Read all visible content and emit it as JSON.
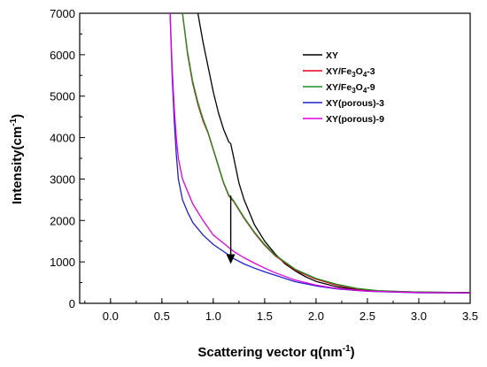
{
  "chart_data": {
    "type": "line",
    "xlabel_main": "Scattering vector q",
    "xlabel_unit": "(nm",
    "xlabel_sup": "-1",
    "xlabel_close": ")",
    "ylabel_main": "Intensity",
    "ylabel_unit": "(cm",
    "ylabel_sup": "-1",
    "ylabel_close": ")",
    "xlim": [
      -0.3,
      3.5
    ],
    "ylim": [
      0,
      7000
    ],
    "x_ticks": [
      0.0,
      0.5,
      1.0,
      1.5,
      2.0,
      2.5,
      3.0,
      3.5
    ],
    "x_tick_labels": [
      "0.0",
      "0.5",
      "1.0",
      "1.5",
      "2.0",
      "2.5",
      "3.0",
      "3.5"
    ],
    "y_ticks": [
      0,
      1000,
      2000,
      3000,
      4000,
      5000,
      6000,
      7000
    ],
    "y_tick_labels": [
      "0",
      "1000",
      "2000",
      "3000",
      "4000",
      "5000",
      "6000",
      "7000"
    ],
    "grid": false,
    "legend_position": "top-right",
    "annotation": "downward arrow at q ≈ 1.17 from about 2600 to 900",
    "series": [
      {
        "legend": [
          "XY"
        ],
        "color": "#000000",
        "x": [
          0.85,
          0.9,
          0.95,
          1.0,
          1.05,
          1.1,
          1.15,
          1.17,
          1.2,
          1.25,
          1.3,
          1.35,
          1.4,
          1.5,
          1.6,
          1.7,
          1.8,
          1.9,
          2.0,
          2.2,
          2.4,
          2.6,
          3.0,
          3.5
        ],
        "y": [
          7000,
          6300,
          5700,
          5100,
          4600,
          4200,
          3900,
          3850,
          3500,
          2900,
          2500,
          2200,
          1900,
          1500,
          1200,
          950,
          780,
          640,
          530,
          400,
          330,
          290,
          270,
          260
        ]
      },
      {
        "legend": [
          "XY/Fe",
          "3",
          "O",
          "4",
          "-3"
        ],
        "color": "#e8001c",
        "x": [
          0.7,
          0.75,
          0.8,
          0.85,
          0.9,
          0.95,
          1.0,
          1.05,
          1.1,
          1.15,
          1.2,
          1.3,
          1.4,
          1.5,
          1.6,
          1.8,
          2.0,
          2.2,
          2.4,
          2.6,
          3.0,
          3.5
        ],
        "y": [
          7000,
          6000,
          5300,
          4800,
          4400,
          4100,
          3700,
          3300,
          2900,
          2600,
          2450,
          2050,
          1700,
          1400,
          1150,
          800,
          580,
          440,
          350,
          300,
          265,
          255
        ]
      },
      {
        "legend": [
          "XY/Fe",
          "3",
          "O",
          "4",
          "-9"
        ],
        "color": "#1f8f1f",
        "x": [
          0.7,
          0.75,
          0.8,
          0.85,
          0.9,
          0.95,
          1.0,
          1.05,
          1.1,
          1.15,
          1.2,
          1.3,
          1.4,
          1.5,
          1.6,
          1.8,
          2.0,
          2.2,
          2.4,
          2.6,
          3.0,
          3.5
        ],
        "y": [
          7000,
          6050,
          5350,
          4850,
          4450,
          4120,
          3720,
          3320,
          2920,
          2620,
          2470,
          2070,
          1720,
          1420,
          1170,
          820,
          600,
          460,
          360,
          305,
          270,
          258
        ]
      },
      {
        "legend": [
          "XY(porous)-3"
        ],
        "color": "#1f1fcf",
        "x": [
          0.58,
          0.6,
          0.62,
          0.64,
          0.66,
          0.7,
          0.75,
          0.8,
          0.9,
          1.0,
          1.1,
          1.2,
          1.3,
          1.4,
          1.5,
          1.6,
          1.8,
          2.0,
          2.2,
          2.5,
          3.0,
          3.5
        ],
        "y": [
          7000,
          5500,
          4400,
          3600,
          3000,
          2500,
          2200,
          1950,
          1650,
          1420,
          1250,
          1080,
          950,
          850,
          760,
          680,
          520,
          420,
          350,
          290,
          255,
          250
        ]
      },
      {
        "legend": [
          "XY(porous)-9"
        ],
        "color": "#e000e0",
        "x": [
          0.58,
          0.6,
          0.62,
          0.64,
          0.66,
          0.7,
          0.75,
          0.8,
          0.9,
          1.0,
          1.1,
          1.2,
          1.3,
          1.4,
          1.5,
          1.6,
          1.8,
          2.0,
          2.2,
          2.5,
          3.0,
          3.5
        ],
        "y": [
          7000,
          5700,
          4700,
          4000,
          3500,
          3000,
          2700,
          2400,
          2000,
          1650,
          1450,
          1250,
          1100,
          970,
          850,
          740,
          560,
          440,
          360,
          295,
          260,
          255
        ]
      }
    ]
  }
}
